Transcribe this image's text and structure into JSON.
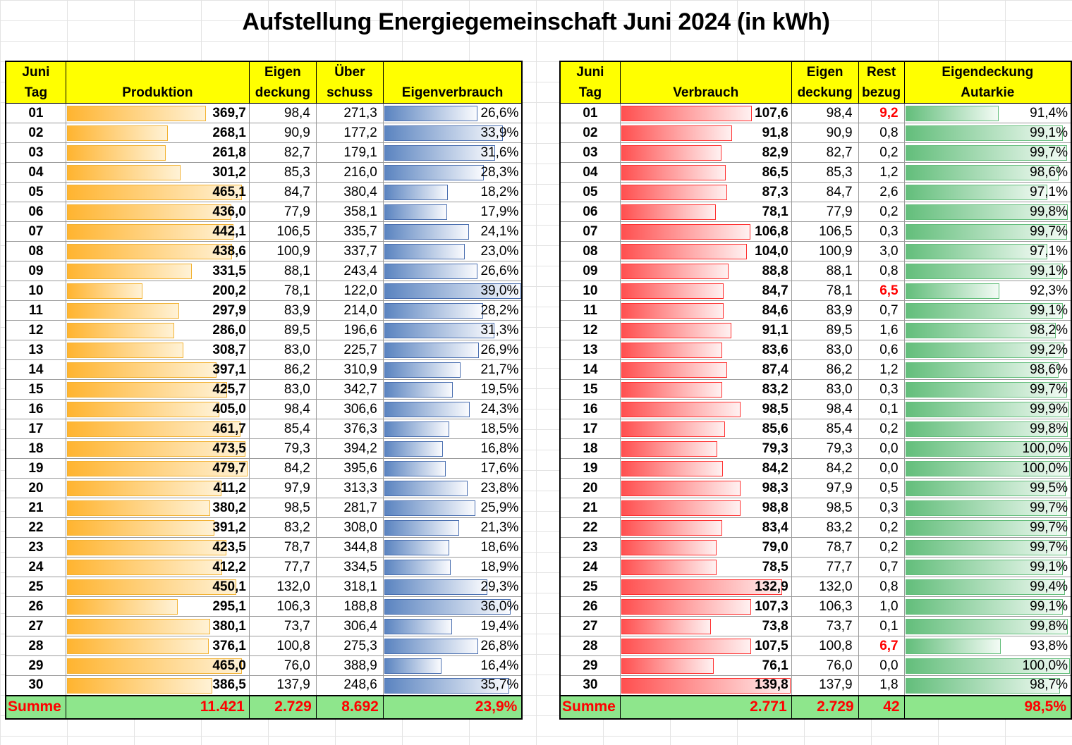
{
  "title": "Aufstellung Energiegemeinschaft Juni 2024 (in kWh)",
  "left_headers": {
    "day": [
      "Juni",
      "Tag"
    ],
    "produktion": [
      "",
      "Produktion"
    ],
    "eigendeckung": [
      "Eigen",
      "deckung"
    ],
    "ueberschuss": [
      "Über",
      "schuss"
    ],
    "eigenverbrauch": [
      "",
      "Eigenverbrauch"
    ]
  },
  "right_headers": {
    "day": [
      "Juni",
      "Tag"
    ],
    "verbrauch": [
      "",
      "Verbrauch"
    ],
    "eigendeckung": [
      "Eigen",
      "deckung"
    ],
    "restbezug": [
      "Rest",
      "bezug"
    ],
    "autarkie": [
      "Eigendeckung",
      "Autarkie"
    ]
  },
  "rows": [
    {
      "tag": "01",
      "prod": "369,7",
      "eigen": "98,4",
      "ueber": "271,3",
      "ev": "26,6%",
      "verb": "107,6",
      "rest": "9,2",
      "aut": "91,4%"
    },
    {
      "tag": "02",
      "prod": "268,1",
      "eigen": "90,9",
      "ueber": "177,2",
      "ev": "33,9%",
      "verb": "91,8",
      "rest": "0,8",
      "aut": "99,1%"
    },
    {
      "tag": "03",
      "prod": "261,8",
      "eigen": "82,7",
      "ueber": "179,1",
      "ev": "31,6%",
      "verb": "82,9",
      "rest": "0,2",
      "aut": "99,7%"
    },
    {
      "tag": "04",
      "prod": "301,2",
      "eigen": "85,3",
      "ueber": "216,0",
      "ev": "28,3%",
      "verb": "86,5",
      "rest": "1,2",
      "aut": "98,6%"
    },
    {
      "tag": "05",
      "prod": "465,1",
      "eigen": "84,7",
      "ueber": "380,4",
      "ev": "18,2%",
      "verb": "87,3",
      "rest": "2,6",
      "aut": "97,1%"
    },
    {
      "tag": "06",
      "prod": "436,0",
      "eigen": "77,9",
      "ueber": "358,1",
      "ev": "17,9%",
      "verb": "78,1",
      "rest": "0,2",
      "aut": "99,8%"
    },
    {
      "tag": "07",
      "prod": "442,1",
      "eigen": "106,5",
      "ueber": "335,7",
      "ev": "24,1%",
      "verb": "106,8",
      "rest": "0,3",
      "aut": "99,7%"
    },
    {
      "tag": "08",
      "prod": "438,6",
      "eigen": "100,9",
      "ueber": "337,7",
      "ev": "23,0%",
      "verb": "104,0",
      "rest": "3,0",
      "aut": "97,1%"
    },
    {
      "tag": "09",
      "prod": "331,5",
      "eigen": "88,1",
      "ueber": "243,4",
      "ev": "26,6%",
      "verb": "88,8",
      "rest": "0,8",
      "aut": "99,1%"
    },
    {
      "tag": "10",
      "prod": "200,2",
      "eigen": "78,1",
      "ueber": "122,0",
      "ev": "39,0%",
      "verb": "84,7",
      "rest": "6,5",
      "aut": "92,3%"
    },
    {
      "tag": "11",
      "prod": "297,9",
      "eigen": "83,9",
      "ueber": "214,0",
      "ev": "28,2%",
      "verb": "84,6",
      "rest": "0,7",
      "aut": "99,1%"
    },
    {
      "tag": "12",
      "prod": "286,0",
      "eigen": "89,5",
      "ueber": "196,6",
      "ev": "31,3%",
      "verb": "91,1",
      "rest": "1,6",
      "aut": "98,2%"
    },
    {
      "tag": "13",
      "prod": "308,7",
      "eigen": "83,0",
      "ueber": "225,7",
      "ev": "26,9%",
      "verb": "83,6",
      "rest": "0,6",
      "aut": "99,2%"
    },
    {
      "tag": "14",
      "prod": "397,1",
      "eigen": "86,2",
      "ueber": "310,9",
      "ev": "21,7%",
      "verb": "87,4",
      "rest": "1,2",
      "aut": "98,6%"
    },
    {
      "tag": "15",
      "prod": "425,7",
      "eigen": "83,0",
      "ueber": "342,7",
      "ev": "19,5%",
      "verb": "83,2",
      "rest": "0,3",
      "aut": "99,7%"
    },
    {
      "tag": "16",
      "prod": "405,0",
      "eigen": "98,4",
      "ueber": "306,6",
      "ev": "24,3%",
      "verb": "98,5",
      "rest": "0,1",
      "aut": "99,9%"
    },
    {
      "tag": "17",
      "prod": "461,7",
      "eigen": "85,4",
      "ueber": "376,3",
      "ev": "18,5%",
      "verb": "85,6",
      "rest": "0,2",
      "aut": "99,8%"
    },
    {
      "tag": "18",
      "prod": "473,5",
      "eigen": "79,3",
      "ueber": "394,2",
      "ev": "16,8%",
      "verb": "79,3",
      "rest": "0,0",
      "aut": "100,0%"
    },
    {
      "tag": "19",
      "prod": "479,7",
      "eigen": "84,2",
      "ueber": "395,6",
      "ev": "17,6%",
      "verb": "84,2",
      "rest": "0,0",
      "aut": "100,0%"
    },
    {
      "tag": "20",
      "prod": "411,2",
      "eigen": "97,9",
      "ueber": "313,3",
      "ev": "23,8%",
      "verb": "98,3",
      "rest": "0,5",
      "aut": "99,5%"
    },
    {
      "tag": "21",
      "prod": "380,2",
      "eigen": "98,5",
      "ueber": "281,7",
      "ev": "25,9%",
      "verb": "98,8",
      "rest": "0,3",
      "aut": "99,7%"
    },
    {
      "tag": "22",
      "prod": "391,2",
      "eigen": "83,2",
      "ueber": "308,0",
      "ev": "21,3%",
      "verb": "83,4",
      "rest": "0,2",
      "aut": "99,7%"
    },
    {
      "tag": "23",
      "prod": "423,5",
      "eigen": "78,7",
      "ueber": "344,8",
      "ev": "18,6%",
      "verb": "79,0",
      "rest": "0,2",
      "aut": "99,7%"
    },
    {
      "tag": "24",
      "prod": "412,2",
      "eigen": "77,7",
      "ueber": "334,5",
      "ev": "18,9%",
      "verb": "78,5",
      "rest": "0,7",
      "aut": "99,1%"
    },
    {
      "tag": "25",
      "prod": "450,1",
      "eigen": "132,0",
      "ueber": "318,1",
      "ev": "29,3%",
      "verb": "132,9",
      "rest": "0,8",
      "aut": "99,4%"
    },
    {
      "tag": "26",
      "prod": "295,1",
      "eigen": "106,3",
      "ueber": "188,8",
      "ev": "36,0%",
      "verb": "107,3",
      "rest": "1,0",
      "aut": "99,1%"
    },
    {
      "tag": "27",
      "prod": "380,1",
      "eigen": "73,7",
      "ueber": "306,4",
      "ev": "19,4%",
      "verb": "73,8",
      "rest": "0,1",
      "aut": "99,8%"
    },
    {
      "tag": "28",
      "prod": "376,1",
      "eigen": "100,8",
      "ueber": "275,3",
      "ev": "26,8%",
      "verb": "107,5",
      "rest": "6,7",
      "aut": "93,8%"
    },
    {
      "tag": "29",
      "prod": "465,0",
      "eigen": "76,0",
      "ueber": "388,9",
      "ev": "16,4%",
      "verb": "76,1",
      "rest": "0,0",
      "aut": "100,0%"
    },
    {
      "tag": "30",
      "prod": "386,5",
      "eigen": "137,9",
      "ueber": "248,6",
      "ev": "35,7%",
      "verb": "139,8",
      "rest": "1,8",
      "aut": "98,7%"
    }
  ],
  "left_sum": {
    "label": "Summe",
    "prod": "11.421",
    "eigen": "2.729",
    "ueber": "8.692",
    "ev": "23,9%"
  },
  "right_sum": {
    "label": "Summe",
    "verb": "2.771",
    "eigen": "2.729",
    "rest": "42",
    "aut": "98,5%"
  },
  "bar_scale": {
    "prod_max": 479.7,
    "ev_max": 39.0,
    "verb_max": 139.8,
    "aut_min": 91.4,
    "aut_max": 100.0
  },
  "colors": {
    "header": "#ffff00",
    "sum_row": "#8ee68c",
    "sum_text": "#ff0000",
    "highlight": "#ff0000",
    "prod_bar": "#ffb430",
    "ev_bar": "#5b84c0",
    "verb_bar": "#ff5050",
    "aut_bar": "#63be7b"
  }
}
